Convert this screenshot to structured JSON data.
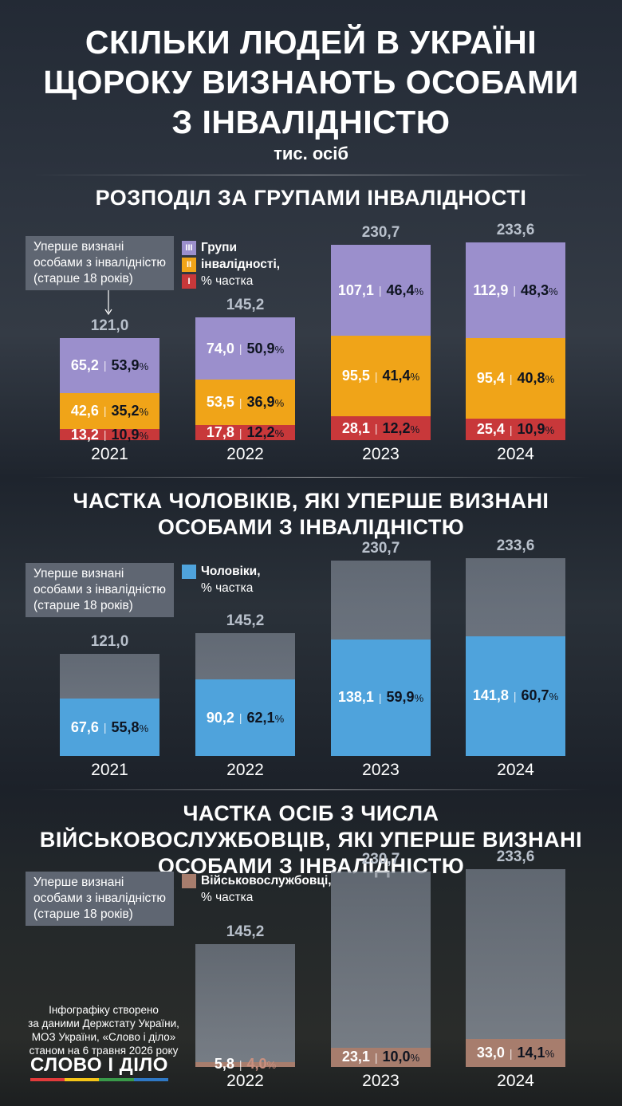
{
  "title": [
    "СКІЛЬКИ ЛЮДЕЙ В УКРАЇНІ",
    "ЩОРОКУ ВИЗНАЮТЬ ОСОБАМИ",
    "З ІНВАЛІДНІСТЮ"
  ],
  "unit": "тис. осіб",
  "note_lines": [
    "Уперше визнані",
    "особами з інвалідністю",
    "(старше 18 років)"
  ],
  "colors": {
    "group_iii": "#9b8fcc",
    "group_ii": "#f0a418",
    "group_i": "#c8383a",
    "men": "#4fa3dc",
    "military": "#a77d6d"
  },
  "chart_data": [
    {
      "type": "bar",
      "title": "РОЗПОДІЛ ЗА ГРУПАМИ ІНВАЛІДНОСТІ",
      "legend": [
        "Групи",
        "інвалідності,",
        "% частка"
      ],
      "legend_symbols": [
        "III",
        "II",
        "I"
      ],
      "categories": [
        "2021",
        "2022",
        "2023",
        "2024"
      ],
      "totals": [
        121.0,
        145.2,
        230.7,
        233.6
      ],
      "total_labels": [
        "121,0",
        "145,2",
        "230,7",
        "233,6"
      ],
      "series": [
        {
          "name": "I",
          "values": [
            13.2,
            17.8,
            28.1,
            25.4
          ],
          "labels": [
            "13,2",
            "17,8",
            "28,1",
            "25,4"
          ],
          "pct": [
            "10,9",
            "12,2",
            "12,2",
            "10,9"
          ]
        },
        {
          "name": "II",
          "values": [
            42.6,
            53.5,
            95.5,
            95.4
          ],
          "labels": [
            "42,6",
            "53,5",
            "95,5",
            "95,4"
          ],
          "pct": [
            "35,2",
            "36,9",
            "41,4",
            "40,8"
          ]
        },
        {
          "name": "III",
          "values": [
            65.2,
            74.0,
            107.1,
            112.9
          ],
          "labels": [
            "65,2",
            "74,0",
            "107,1",
            "112,9"
          ],
          "pct": [
            "53,9",
            "50,9",
            "46,4",
            "48,3"
          ]
        }
      ]
    },
    {
      "type": "bar",
      "title": "ЧАСТКА ЧОЛОВІКІВ, ЯКІ УПЕРШЕ ВИЗНАНІ ОСОБАМИ З ІНВАЛІДНІСТЮ",
      "legend": [
        "Чоловіки,",
        "% частка"
      ],
      "categories": [
        "2021",
        "2022",
        "2023",
        "2024"
      ],
      "totals": [
        121.0,
        145.2,
        230.7,
        233.6
      ],
      "total_labels": [
        "121,0",
        "145,2",
        "230,7",
        "233,6"
      ],
      "series": [
        {
          "name": "Чоловіки",
          "values": [
            67.6,
            90.2,
            138.1,
            141.8
          ],
          "labels": [
            "67,6",
            "90,2",
            "138,1",
            "141,8"
          ],
          "pct": [
            "55,8",
            "62,1",
            "59,9",
            "60,7"
          ]
        }
      ]
    },
    {
      "type": "bar",
      "title": "ЧАСТКА ОСІБ З ЧИСЛА ВІЙСЬКОВОСЛУЖБОВЦІВ, ЯКІ УПЕРШЕ ВИЗНАНІ ОСОБАМИ З ІНВАЛІДНІСТЮ",
      "legend": [
        "Військовослужбовці,",
        "% частка"
      ],
      "categories": [
        "2022",
        "2023",
        "2024"
      ],
      "totals": [
        145.2,
        230.7,
        233.6
      ],
      "total_labels": [
        "145,2",
        "230,7",
        "233,6"
      ],
      "series": [
        {
          "name": "Військовослужбовці",
          "values": [
            5.8,
            23.1,
            33.0
          ],
          "labels": [
            "5,8",
            "23,1",
            "33,0"
          ],
          "pct": [
            "4,0",
            "10,0",
            "14,1"
          ]
        }
      ]
    }
  ],
  "footer": [
    "Інфографіку створено",
    "за даними Держстату України,",
    "МОЗ України, «Слово і діло»",
    "станом на 6 травня 2026 року"
  ],
  "logo": "СЛОВО І ДІЛО"
}
